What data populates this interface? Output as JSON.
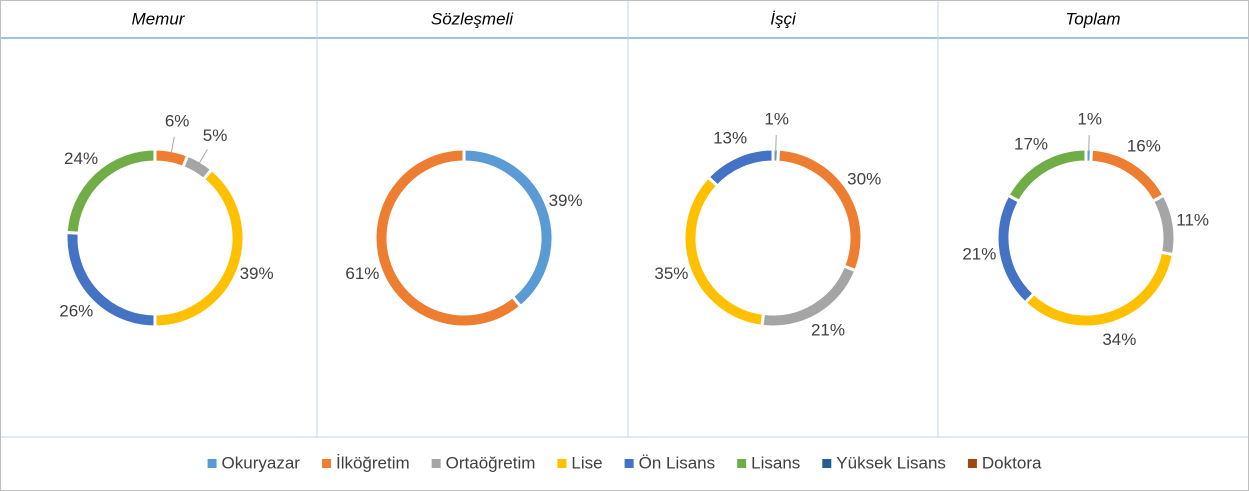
{
  "chart_data": [
    {
      "type": "donut",
      "title": "Memur",
      "values": [
        0,
        6,
        5,
        39,
        26,
        24,
        0,
        0
      ],
      "value_labels": [
        null,
        "6%",
        "5%",
        "39%",
        "26%",
        "24%",
        null,
        null
      ]
    },
    {
      "type": "donut",
      "title": "Sözleşmeli",
      "values": [
        39,
        61,
        0,
        0,
        0,
        0,
        0,
        0
      ],
      "value_labels": [
        "39%",
        "61%",
        null,
        null,
        null,
        null,
        null,
        null
      ]
    },
    {
      "type": "donut",
      "title": "İşçi",
      "values": [
        1,
        30,
        21,
        35,
        13,
        0,
        0,
        0
      ],
      "value_labels": [
        "1%",
        "30%",
        "21%",
        "35%",
        "13%",
        null,
        null,
        null
      ]
    },
    {
      "type": "donut",
      "title": "Toplam",
      "values": [
        1,
        16,
        11,
        34,
        21,
        17,
        0,
        0
      ],
      "value_labels": [
        "1%",
        "16%",
        "11%",
        "34%",
        "21%",
        "17%",
        null,
        null
      ]
    }
  ],
  "legend": {
    "labels": [
      "Okuryazar",
      "İlköğretim",
      "Ortaöğretim",
      "Lise",
      "Ön Lisans",
      "Lisans",
      "Yüksek Lisans",
      "Doktora"
    ],
    "colors": [
      "#5b9bd5",
      "#ed7d31",
      "#a5a5a5",
      "#ffc000",
      "#4472c4",
      "#70ad47",
      "#255e91",
      "#9e480e"
    ]
  }
}
